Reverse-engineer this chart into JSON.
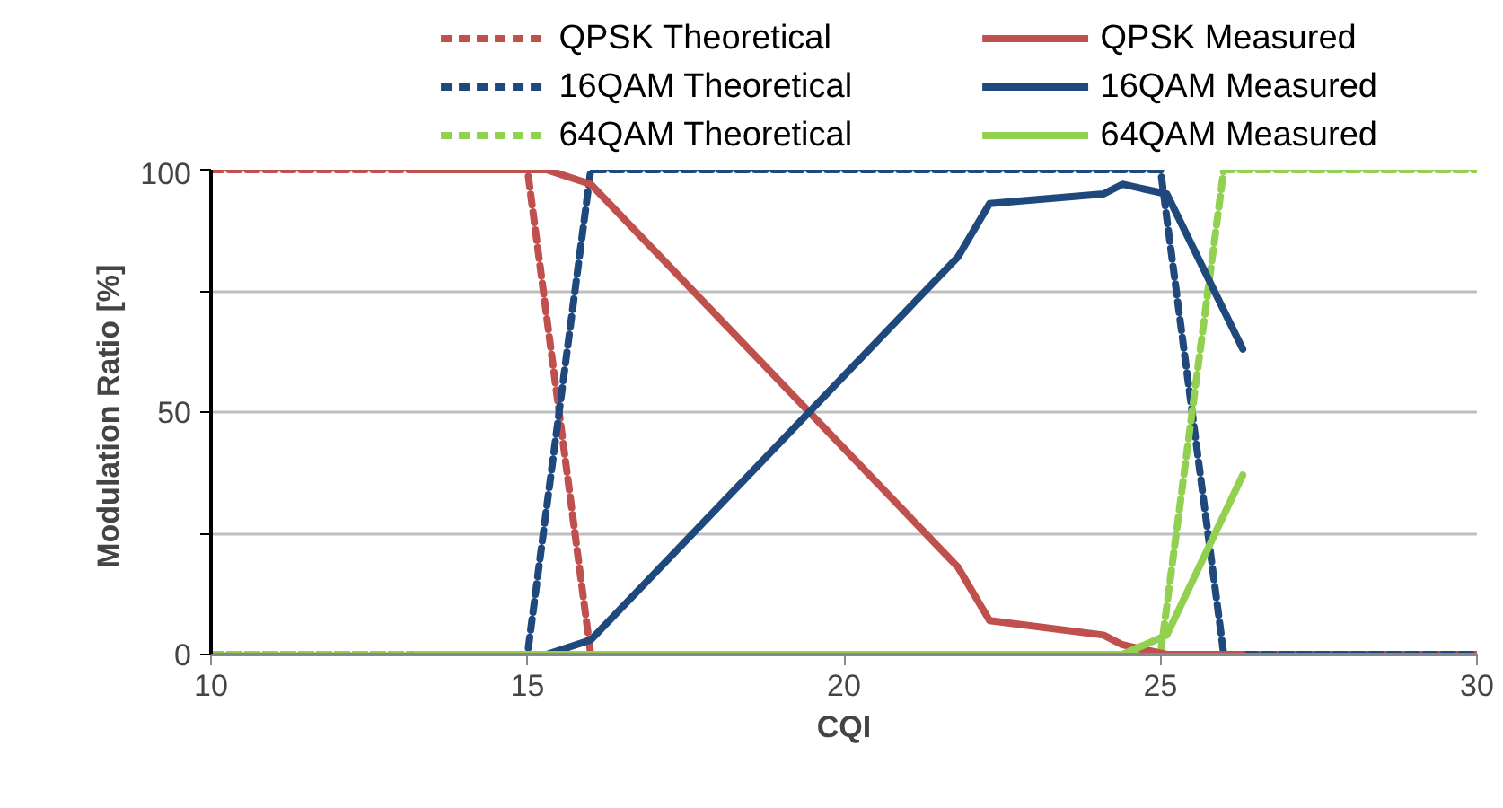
{
  "chart_data": {
    "type": "line",
    "xlabel": "CQI",
    "ylabel": "Modulation Ratio  [%]",
    "xlim": [
      10,
      30
    ],
    "xticks": [
      10,
      15,
      20,
      25,
      30
    ],
    "ylim": [
      0,
      100
    ],
    "yticks": [
      0,
      {
        "value": 25,
        "label": null
      },
      50,
      {
        "value": 75,
        "label": null
      },
      100
    ],
    "grid": "y",
    "legend": "top",
    "marker": "none",
    "series": [
      {
        "name": "QPSK Theoretical",
        "color": "#c0504d",
        "line_style": "dashed",
        "x": [
          10,
          15,
          16,
          30
        ],
        "values": [
          100,
          100,
          0,
          0
        ]
      },
      {
        "name": "16QAM Theoretical",
        "color": "#1f497d",
        "line_style": "dashed",
        "x": [
          10,
          15,
          16,
          25,
          26,
          30
        ],
        "values": [
          0,
          0,
          100,
          100,
          0,
          0
        ]
      },
      {
        "name": "64QAM Theoretical",
        "color": "#92d050",
        "line_style": "dashed",
        "x": [
          10,
          25,
          26,
          30
        ],
        "values": [
          0,
          0,
          100,
          100
        ]
      },
      {
        "name": "QPSK Measured",
        "color": "#c0504d",
        "line_style": "solid",
        "x": [
          13.2,
          15.3,
          16,
          21.8,
          22.3,
          24.1,
          24.4,
          25.1,
          26.3
        ],
        "values": [
          100,
          100,
          97,
          18,
          7,
          4,
          2,
          0,
          0
        ]
      },
      {
        "name": "16QAM Measured",
        "color": "#1f497d",
        "line_style": "solid",
        "x": [
          13.2,
          15.3,
          16,
          21.8,
          22.3,
          24.1,
          24.4,
          25.1,
          26.3
        ],
        "values": [
          0,
          0,
          3,
          82,
          93,
          95,
          97,
          95,
          63
        ]
      },
      {
        "name": "64QAM Measured",
        "color": "#92d050",
        "line_style": "solid",
        "x": [
          13.2,
          15.3,
          16,
          21.8,
          22.3,
          24.1,
          24.4,
          25.1,
          26.3
        ],
        "values": [
          0,
          0,
          0,
          0,
          0,
          0,
          0,
          4,
          37
        ]
      }
    ]
  }
}
